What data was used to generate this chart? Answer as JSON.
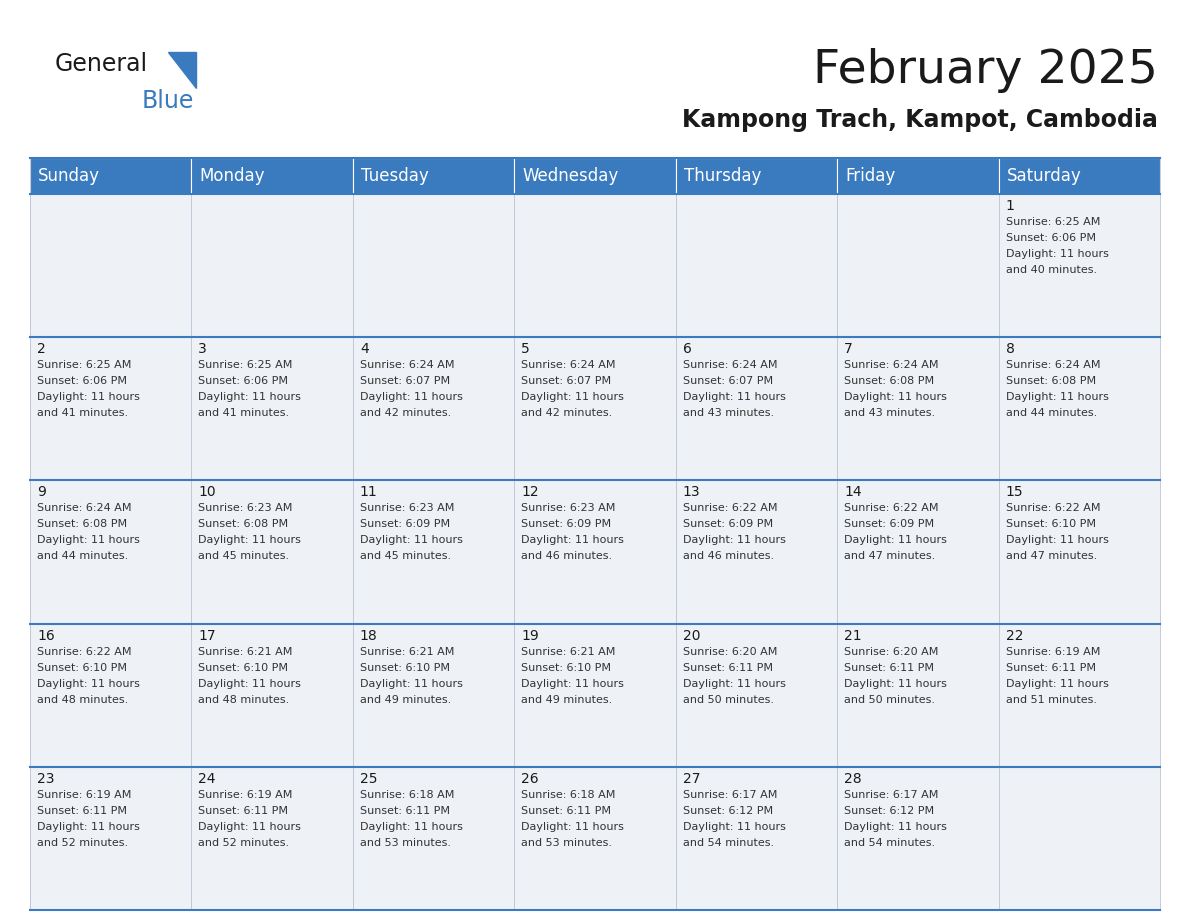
{
  "title": "February 2025",
  "subtitle": "Kampong Trach, Kampot, Cambodia",
  "header_bg_color": "#3a7abf",
  "header_text_color": "#ffffff",
  "cell_bg_color": "#eef2f7",
  "border_color": "#3a7abf",
  "cell_border_color": "#b0b8c8",
  "day_names": [
    "Sunday",
    "Monday",
    "Tuesday",
    "Wednesday",
    "Thursday",
    "Friday",
    "Saturday"
  ],
  "days": [
    {
      "day": 1,
      "col": 6,
      "row": 0,
      "sunrise": "6:25 AM",
      "sunset": "6:06 PM",
      "daylight_hours": 11,
      "daylight_minutes": 40
    },
    {
      "day": 2,
      "col": 0,
      "row": 1,
      "sunrise": "6:25 AM",
      "sunset": "6:06 PM",
      "daylight_hours": 11,
      "daylight_minutes": 41
    },
    {
      "day": 3,
      "col": 1,
      "row": 1,
      "sunrise": "6:25 AM",
      "sunset": "6:06 PM",
      "daylight_hours": 11,
      "daylight_minutes": 41
    },
    {
      "day": 4,
      "col": 2,
      "row": 1,
      "sunrise": "6:24 AM",
      "sunset": "6:07 PM",
      "daylight_hours": 11,
      "daylight_minutes": 42
    },
    {
      "day": 5,
      "col": 3,
      "row": 1,
      "sunrise": "6:24 AM",
      "sunset": "6:07 PM",
      "daylight_hours": 11,
      "daylight_minutes": 42
    },
    {
      "day": 6,
      "col": 4,
      "row": 1,
      "sunrise": "6:24 AM",
      "sunset": "6:07 PM",
      "daylight_hours": 11,
      "daylight_minutes": 43
    },
    {
      "day": 7,
      "col": 5,
      "row": 1,
      "sunrise": "6:24 AM",
      "sunset": "6:08 PM",
      "daylight_hours": 11,
      "daylight_minutes": 43
    },
    {
      "day": 8,
      "col": 6,
      "row": 1,
      "sunrise": "6:24 AM",
      "sunset": "6:08 PM",
      "daylight_hours": 11,
      "daylight_minutes": 44
    },
    {
      "day": 9,
      "col": 0,
      "row": 2,
      "sunrise": "6:24 AM",
      "sunset": "6:08 PM",
      "daylight_hours": 11,
      "daylight_minutes": 44
    },
    {
      "day": 10,
      "col": 1,
      "row": 2,
      "sunrise": "6:23 AM",
      "sunset": "6:08 PM",
      "daylight_hours": 11,
      "daylight_minutes": 45
    },
    {
      "day": 11,
      "col": 2,
      "row": 2,
      "sunrise": "6:23 AM",
      "sunset": "6:09 PM",
      "daylight_hours": 11,
      "daylight_minutes": 45
    },
    {
      "day": 12,
      "col": 3,
      "row": 2,
      "sunrise": "6:23 AM",
      "sunset": "6:09 PM",
      "daylight_hours": 11,
      "daylight_minutes": 46
    },
    {
      "day": 13,
      "col": 4,
      "row": 2,
      "sunrise": "6:22 AM",
      "sunset": "6:09 PM",
      "daylight_hours": 11,
      "daylight_minutes": 46
    },
    {
      "day": 14,
      "col": 5,
      "row": 2,
      "sunrise": "6:22 AM",
      "sunset": "6:09 PM",
      "daylight_hours": 11,
      "daylight_minutes": 47
    },
    {
      "day": 15,
      "col": 6,
      "row": 2,
      "sunrise": "6:22 AM",
      "sunset": "6:10 PM",
      "daylight_hours": 11,
      "daylight_minutes": 47
    },
    {
      "day": 16,
      "col": 0,
      "row": 3,
      "sunrise": "6:22 AM",
      "sunset": "6:10 PM",
      "daylight_hours": 11,
      "daylight_minutes": 48
    },
    {
      "day": 17,
      "col": 1,
      "row": 3,
      "sunrise": "6:21 AM",
      "sunset": "6:10 PM",
      "daylight_hours": 11,
      "daylight_minutes": 48
    },
    {
      "day": 18,
      "col": 2,
      "row": 3,
      "sunrise": "6:21 AM",
      "sunset": "6:10 PM",
      "daylight_hours": 11,
      "daylight_minutes": 49
    },
    {
      "day": 19,
      "col": 3,
      "row": 3,
      "sunrise": "6:21 AM",
      "sunset": "6:10 PM",
      "daylight_hours": 11,
      "daylight_minutes": 49
    },
    {
      "day": 20,
      "col": 4,
      "row": 3,
      "sunrise": "6:20 AM",
      "sunset": "6:11 PM",
      "daylight_hours": 11,
      "daylight_minutes": 50
    },
    {
      "day": 21,
      "col": 5,
      "row": 3,
      "sunrise": "6:20 AM",
      "sunset": "6:11 PM",
      "daylight_hours": 11,
      "daylight_minutes": 50
    },
    {
      "day": 22,
      "col": 6,
      "row": 3,
      "sunrise": "6:19 AM",
      "sunset": "6:11 PM",
      "daylight_hours": 11,
      "daylight_minutes": 51
    },
    {
      "day": 23,
      "col": 0,
      "row": 4,
      "sunrise": "6:19 AM",
      "sunset": "6:11 PM",
      "daylight_hours": 11,
      "daylight_minutes": 52
    },
    {
      "day": 24,
      "col": 1,
      "row": 4,
      "sunrise": "6:19 AM",
      "sunset": "6:11 PM",
      "daylight_hours": 11,
      "daylight_minutes": 52
    },
    {
      "day": 25,
      "col": 2,
      "row": 4,
      "sunrise": "6:18 AM",
      "sunset": "6:11 PM",
      "daylight_hours": 11,
      "daylight_minutes": 53
    },
    {
      "day": 26,
      "col": 3,
      "row": 4,
      "sunrise": "6:18 AM",
      "sunset": "6:11 PM",
      "daylight_hours": 11,
      "daylight_minutes": 53
    },
    {
      "day": 27,
      "col": 4,
      "row": 4,
      "sunrise": "6:17 AM",
      "sunset": "6:12 PM",
      "daylight_hours": 11,
      "daylight_minutes": 54
    },
    {
      "day": 28,
      "col": 5,
      "row": 4,
      "sunrise": "6:17 AM",
      "sunset": "6:12 PM",
      "daylight_hours": 11,
      "daylight_minutes": 54
    }
  ],
  "num_rows": 5,
  "num_cols": 7,
  "title_fontsize": 34,
  "subtitle_fontsize": 17,
  "header_fontsize": 12,
  "day_num_fontsize": 10,
  "cell_text_fontsize": 8
}
